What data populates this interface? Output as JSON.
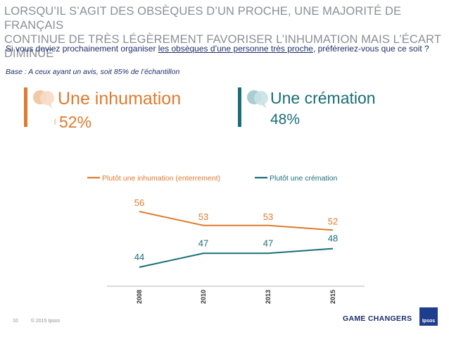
{
  "header": {
    "title_line1": "LORSQU’IL S’AGIT DES OBSÈQUES D’UN PROCHE, UNE MAJORITÉ DE FRANÇAIS",
    "title_line2": "CONTINUE DE TRÈS LÉGÈREMENT FAVORISER L’INHUMATION MAIS L’ÉCART DIMINUE"
  },
  "question": {
    "prefix": "Si vous deviez prochainement organiser ",
    "underlined": "les obsèques d’une personne très proche",
    "suffix": ", préféreriez-vous que ce soit ?",
    "base": "Base : A ceux ayant un avis, soit 85% de l’échantillon"
  },
  "cards": {
    "inhumation": {
      "label": "Une inhumation",
      "mark": "(",
      "value": "52%",
      "color": "#e07a2e",
      "icon": "speech-bubbles-icon"
    },
    "cremation": {
      "label": "Une crémation",
      "value": "48%",
      "color": "#1a6e78",
      "icon": "speech-bubbles-icon"
    }
  },
  "chart_data": {
    "type": "line",
    "categories": [
      "2008",
      "2010",
      "2013",
      "2015"
    ],
    "series": [
      {
        "name": "Plutôt une inhumation (enterrement)",
        "values": [
          56,
          53,
          53,
          52
        ],
        "color": "#e07a2e"
      },
      {
        "name": "Plutôt une crémation",
        "values": [
          44,
          47,
          47,
          48
        ],
        "color": "#1a6e78"
      }
    ],
    "legend_position": "top-center",
    "grid": false
  },
  "footer": {
    "page_number": "10",
    "copyright": "© 2015 Ipsos",
    "brand": "GAME CHANGERS",
    "logo_text": "Ipsos"
  }
}
